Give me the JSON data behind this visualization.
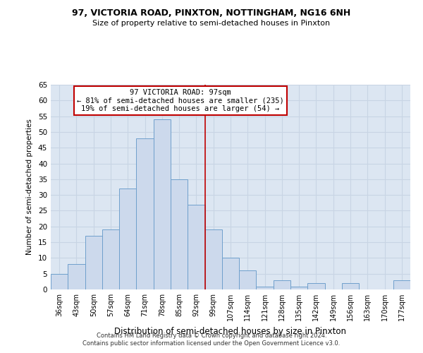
{
  "title1": "97, VICTORIA ROAD, PINXTON, NOTTINGHAM, NG16 6NH",
  "title2": "Size of property relative to semi-detached houses in Pinxton",
  "xlabel": "Distribution of semi-detached houses by size in Pinxton",
  "ylabel": "Number of semi-detached properties",
  "footer1": "Contains HM Land Registry data © Crown copyright and database right 2024.",
  "footer2": "Contains public sector information licensed under the Open Government Licence v3.0.",
  "categories": [
    "36sqm",
    "43sqm",
    "50sqm",
    "57sqm",
    "64sqm",
    "71sqm",
    "78sqm",
    "85sqm",
    "92sqm",
    "99sqm",
    "107sqm",
    "114sqm",
    "121sqm",
    "128sqm",
    "135sqm",
    "142sqm",
    "149sqm",
    "156sqm",
    "163sqm",
    "170sqm",
    "177sqm"
  ],
  "values": [
    5,
    8,
    17,
    19,
    32,
    48,
    54,
    35,
    27,
    19,
    10,
    6,
    1,
    3,
    1,
    2,
    0,
    2,
    0,
    0,
    3
  ],
  "bar_color": "#ccd9ec",
  "bar_edge_color": "#6fa0cc",
  "bar_width": 1.0,
  "vline_color": "#c00000",
  "annotation_title": "97 VICTORIA ROAD: 97sqm",
  "annotation_line1": "← 81% of semi-detached houses are smaller (235)",
  "annotation_line2": "19% of semi-detached houses are larger (54) →",
  "annotation_box_color": "#c00000",
  "ylim": [
    0,
    65
  ],
  "yticks": [
    0,
    5,
    10,
    15,
    20,
    25,
    30,
    35,
    40,
    45,
    50,
    55,
    60,
    65
  ],
  "grid_color": "#c8d4e4",
  "bg_color": "#ffffff",
  "plot_bg_color": "#dce6f2"
}
